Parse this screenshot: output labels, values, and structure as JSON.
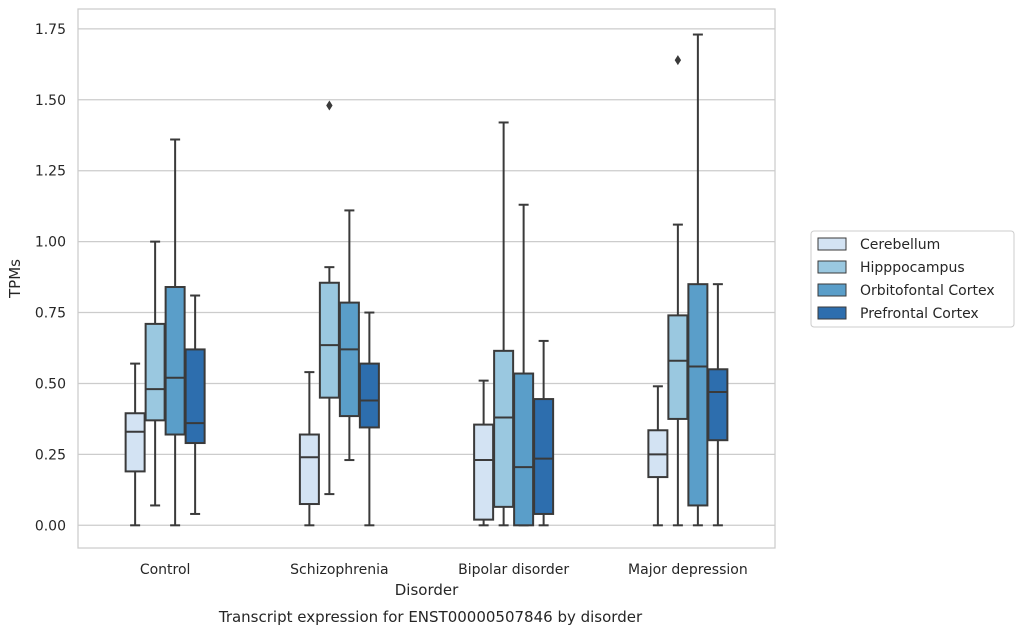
{
  "chart_data": {
    "type": "box",
    "title": "Transcript expression for ENST00000507846 by disorder",
    "xlabel": "Disorder",
    "ylabel": "TPMs",
    "ylim": [
      -0.08,
      1.82
    ],
    "yticks": [
      "0.00",
      "0.25",
      "0.50",
      "0.75",
      "1.00",
      "1.25",
      "1.50",
      "1.75"
    ],
    "ytick_values": [
      0,
      0.25,
      0.5,
      0.75,
      1.0,
      1.25,
      1.5,
      1.75
    ],
    "categories": [
      "Control",
      "Schizophrenia",
      "Bipolar disorder",
      "Major depression"
    ],
    "grid": true,
    "legend_position": "right",
    "series": [
      {
        "name": "Cerebellum",
        "color": "#d3e3f3",
        "boxes": [
          {
            "whislo": 0.0,
            "q1": 0.19,
            "med": 0.33,
            "q3": 0.395,
            "whishi": 0.57,
            "fliers": []
          },
          {
            "whislo": 0.0,
            "q1": 0.075,
            "med": 0.24,
            "q3": 0.32,
            "whishi": 0.54,
            "fliers": []
          },
          {
            "whislo": 0.0,
            "q1": 0.02,
            "med": 0.23,
            "q3": 0.355,
            "whishi": 0.51,
            "fliers": []
          },
          {
            "whislo": 0.0,
            "q1": 0.17,
            "med": 0.25,
            "q3": 0.335,
            "whishi": 0.49,
            "fliers": []
          }
        ]
      },
      {
        "name": "Hipppocampus",
        "color": "#9ac8e0",
        "boxes": [
          {
            "whislo": 0.07,
            "q1": 0.37,
            "med": 0.48,
            "q3": 0.71,
            "whishi": 1.0,
            "fliers": []
          },
          {
            "whislo": 0.11,
            "q1": 0.45,
            "med": 0.635,
            "q3": 0.855,
            "whishi": 0.91,
            "fliers": [
              1.48
            ]
          },
          {
            "whislo": 0.0,
            "q1": 0.065,
            "med": 0.38,
            "q3": 0.615,
            "whishi": 1.42,
            "fliers": []
          },
          {
            "whislo": 0.0,
            "q1": 0.375,
            "med": 0.58,
            "q3": 0.74,
            "whishi": 1.06,
            "fliers": [
              1.64
            ]
          }
        ]
      },
      {
        "name": "Orbitofontal Cortex",
        "color": "#5a9ec9",
        "boxes": [
          {
            "whislo": 0.0,
            "q1": 0.32,
            "med": 0.52,
            "q3": 0.84,
            "whishi": 1.36,
            "fliers": []
          },
          {
            "whislo": 0.23,
            "q1": 0.385,
            "med": 0.62,
            "q3": 0.785,
            "whishi": 1.11,
            "fliers": []
          },
          {
            "whislo": 0.0,
            "q1": 0.0,
            "med": 0.205,
            "q3": 0.535,
            "whishi": 1.13,
            "fliers": []
          },
          {
            "whislo": 0.0,
            "q1": 0.07,
            "med": 0.56,
            "q3": 0.85,
            "whishi": 1.73,
            "fliers": []
          }
        ]
      },
      {
        "name": "Prefrontal Cortex",
        "color": "#2d6eae",
        "boxes": [
          {
            "whislo": 0.04,
            "q1": 0.29,
            "med": 0.36,
            "q3": 0.62,
            "whishi": 0.81,
            "fliers": []
          },
          {
            "whislo": 0.0,
            "q1": 0.345,
            "med": 0.44,
            "q3": 0.57,
            "whishi": 0.75,
            "fliers": []
          },
          {
            "whislo": 0.0,
            "q1": 0.04,
            "med": 0.235,
            "q3": 0.445,
            "whishi": 0.65,
            "fliers": []
          },
          {
            "whislo": 0.0,
            "q1": 0.3,
            "med": 0.47,
            "q3": 0.55,
            "whishi": 0.85,
            "fliers": []
          }
        ]
      }
    ]
  }
}
